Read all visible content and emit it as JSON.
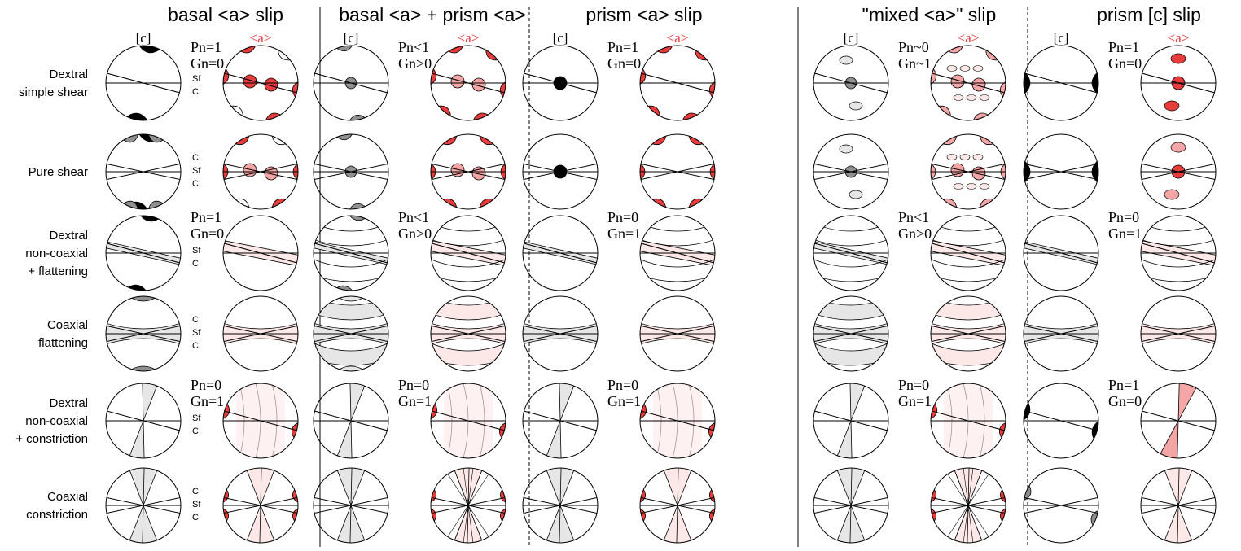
{
  "colors": {
    "red": "#e63c3c",
    "pink": "#f4a5a5",
    "light_pink": "#fde8e8",
    "gray": "#909090",
    "light_gray": "#e6e6e6",
    "black": "#000000",
    "red_label": "#e8383c"
  },
  "axis_labels": {
    "c": "[c]",
    "a": "<a>"
  },
  "plane_labels": {
    "sf": "Sf",
    "c": "C"
  },
  "columns": [
    {
      "title": "basal <a> slip",
      "pg": [
        "Pn=1 Gn=0",
        "",
        "Pn=1 Gn=0",
        "",
        "Pn=0 Gn=1",
        ""
      ]
    },
    {
      "title": "basal <a> + prism <a>",
      "pg": [
        "Pn<1 Gn>0",
        "",
        "Pn<1 Gn>0",
        "",
        "Pn=0 Gn=1",
        ""
      ]
    },
    {
      "title": "prism <a> slip",
      "pg": [
        "Pn=1 Gn=0",
        "",
        "Pn=0 Gn=1",
        "",
        "Pn=0 Gn=1",
        ""
      ]
    },
    {
      "title": "\"mixed <a>\" slip",
      "pg": [
        "Pn~0 Gn~1",
        "",
        "Pn<1 Gn>0",
        "",
        "Pn=0 Gn=1",
        ""
      ]
    },
    {
      "title": "prism [c] slip",
      "pg": [
        "Pn=1 Gn=0",
        "",
        "Pn=0 Gn=1",
        "",
        "Pn=1 Gn=0",
        ""
      ]
    }
  ],
  "rows": [
    {
      "lines": [
        "Dextral",
        "simple shear"
      ]
    },
    {
      "lines": [
        "Pure shear"
      ]
    },
    {
      "lines": [
        "Dextral",
        "non-coaxial",
        "+ flattening"
      ]
    },
    {
      "lines": [
        "Coaxial",
        "flattening"
      ]
    },
    {
      "lines": [
        "Dextral",
        "non-coaxial",
        "+ constriction"
      ]
    },
    {
      "lines": [
        "Coaxial",
        "constriction"
      ]
    }
  ]
}
